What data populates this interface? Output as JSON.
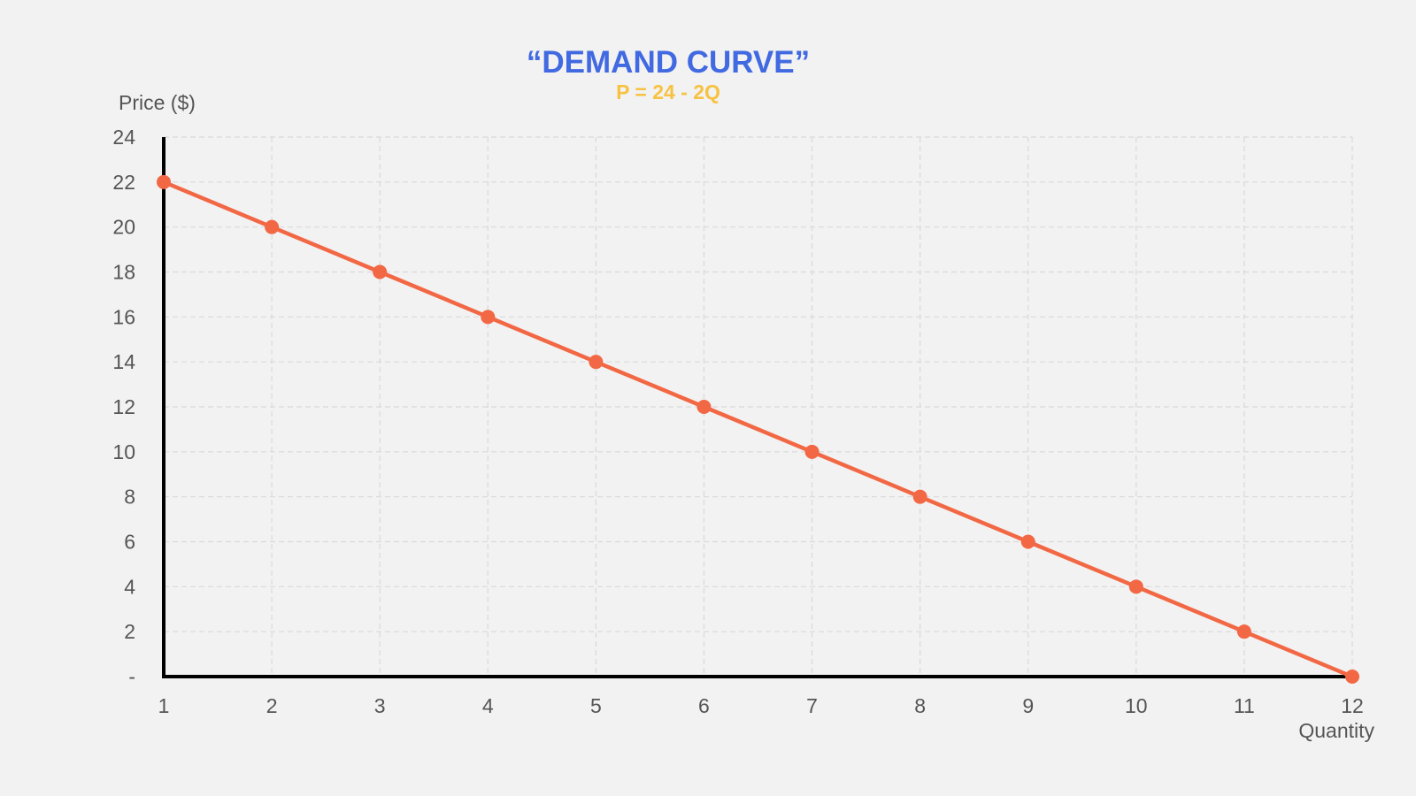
{
  "chart_data": {
    "type": "line",
    "title": "“DEMAND CURVE”",
    "subtitle": "P = 24 - 2Q",
    "xlabel": "Quantity",
    "ylabel": "Price ($)",
    "x": [
      1,
      2,
      3,
      4,
      5,
      6,
      7,
      8,
      9,
      10,
      11,
      12
    ],
    "series": [
      {
        "values": [
          22,
          20,
          18,
          16,
          14,
          12,
          10,
          8,
          6,
          4,
          2,
          0
        ]
      }
    ],
    "xlim": [
      1,
      12
    ],
    "ylim": [
      0,
      24
    ],
    "x_ticks": [
      "1",
      "2",
      "3",
      "4",
      "5",
      "6",
      "7",
      "8",
      "9",
      "10",
      "11",
      "12"
    ],
    "y_ticks": [
      {
        "value": 0,
        "label": "-"
      },
      {
        "value": 2,
        "label": "2"
      },
      {
        "value": 4,
        "label": "4"
      },
      {
        "value": 6,
        "label": "6"
      },
      {
        "value": 8,
        "label": "8"
      },
      {
        "value": 10,
        "label": "10"
      },
      {
        "value": 12,
        "label": "12"
      },
      {
        "value": 14,
        "label": "14"
      },
      {
        "value": 16,
        "label": "16"
      },
      {
        "value": 18,
        "label": "18"
      },
      {
        "value": 20,
        "label": "20"
      },
      {
        "value": 22,
        "label": "22"
      },
      {
        "value": 24,
        "label": "24"
      }
    ],
    "grid": true,
    "legend": "none"
  },
  "colors": {
    "title": "#4169e1",
    "subtitle": "#f7c242",
    "line": "#f26744",
    "axis": "#000000",
    "grid": "#d9d9d9",
    "text": "#555555",
    "background": "#f2f2f2"
  }
}
